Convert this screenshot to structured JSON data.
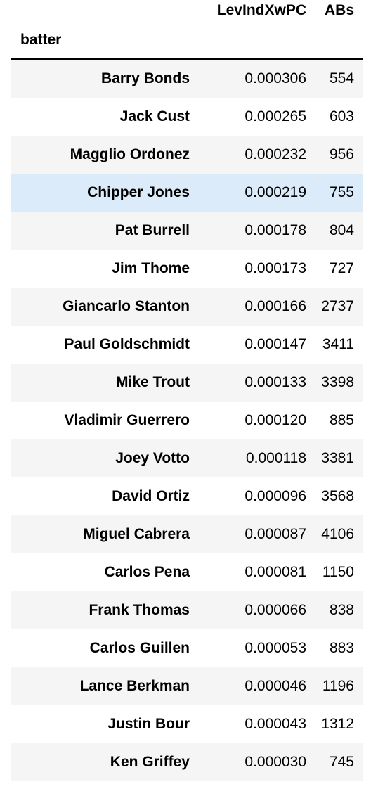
{
  "table": {
    "columns": [
      "LevIndXwPC",
      "ABs"
    ],
    "index_name": "batter",
    "highlighted_row": 3,
    "rows": [
      {
        "batter": "Barry Bonds",
        "LevIndXwPC": "0.000306",
        "ABs": "554"
      },
      {
        "batter": "Jack Cust",
        "LevIndXwPC": "0.000265",
        "ABs": "603"
      },
      {
        "batter": "Magglio Ordonez",
        "LevIndXwPC": "0.000232",
        "ABs": "956"
      },
      {
        "batter": "Chipper Jones",
        "LevIndXwPC": "0.000219",
        "ABs": "755"
      },
      {
        "batter": "Pat Burrell",
        "LevIndXwPC": "0.000178",
        "ABs": "804"
      },
      {
        "batter": "Jim Thome",
        "LevIndXwPC": "0.000173",
        "ABs": "727"
      },
      {
        "batter": "Giancarlo Stanton",
        "LevIndXwPC": "0.000166",
        "ABs": "2737"
      },
      {
        "batter": "Paul Goldschmidt",
        "LevIndXwPC": "0.000147",
        "ABs": "3411"
      },
      {
        "batter": "Mike Trout",
        "LevIndXwPC": "0.000133",
        "ABs": "3398"
      },
      {
        "batter": "Vladimir Guerrero",
        "LevIndXwPC": "0.000120",
        "ABs": "885"
      },
      {
        "batter": "Joey Votto",
        "LevIndXwPC": "0.000118",
        "ABs": "3381"
      },
      {
        "batter": "David Ortiz",
        "LevIndXwPC": "0.000096",
        "ABs": "3568"
      },
      {
        "batter": "Miguel Cabrera",
        "LevIndXwPC": "0.000087",
        "ABs": "4106"
      },
      {
        "batter": "Carlos Pena",
        "LevIndXwPC": "0.000081",
        "ABs": "1150"
      },
      {
        "batter": "Frank Thomas",
        "LevIndXwPC": "0.000066",
        "ABs": "838"
      },
      {
        "batter": "Carlos Guillen",
        "LevIndXwPC": "0.000053",
        "ABs": "883"
      },
      {
        "batter": "Lance Berkman",
        "LevIndXwPC": "0.000046",
        "ABs": "1196"
      },
      {
        "batter": "Justin Bour",
        "LevIndXwPC": "0.000043",
        "ABs": "1312"
      },
      {
        "batter": "Ken Griffey",
        "LevIndXwPC": "0.000030",
        "ABs": "745"
      }
    ]
  }
}
